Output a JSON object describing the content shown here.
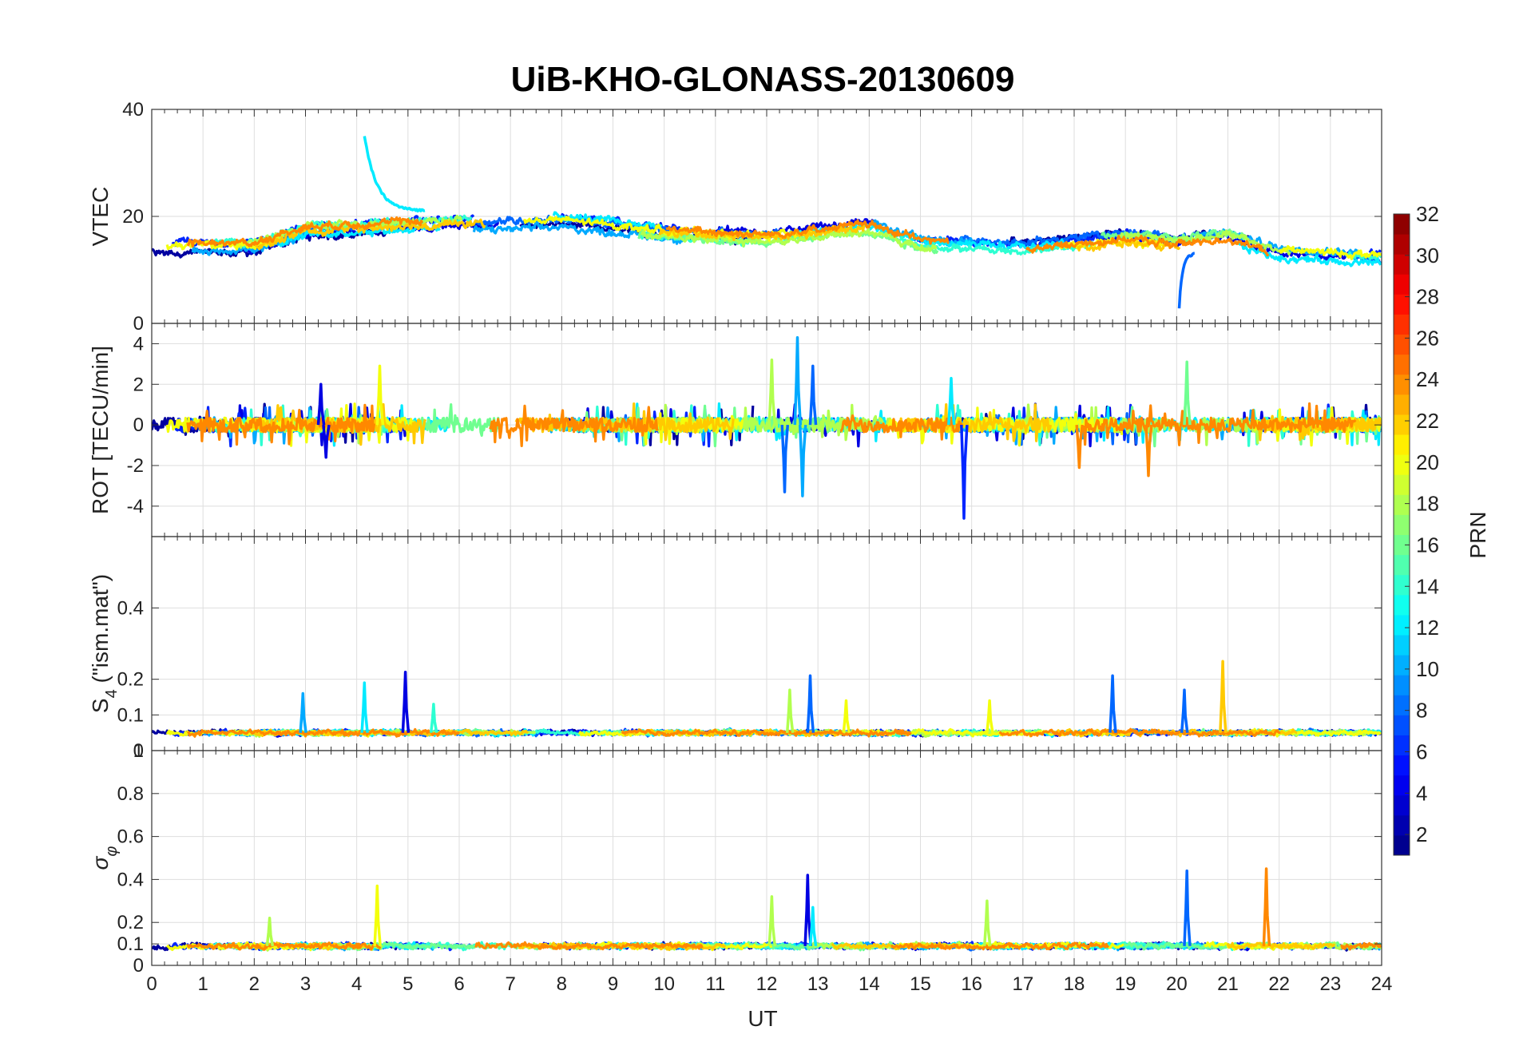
{
  "title": "UiB-KHO-GLONASS-20130609",
  "chart_data": {
    "type": "line",
    "title": "UiB-KHO-GLONASS-20130609",
    "x": {
      "label": "UT",
      "range": [
        0,
        24
      ],
      "ticks": [
        "0",
        "1",
        "2",
        "3",
        "4",
        "5",
        "6",
        "7",
        "8",
        "9",
        "10",
        "11",
        "12",
        "13",
        "14",
        "15",
        "16",
        "17",
        "18",
        "19",
        "20",
        "21",
        "22",
        "23",
        "24"
      ]
    },
    "panels": [
      {
        "id": "vtec",
        "ylabel": "VTEC",
        "ylim": [
          0,
          40
        ],
        "yticks": [
          0,
          20,
          40
        ],
        "ytick_labels": [
          "0",
          "20",
          "40"
        ],
        "base_level": 15,
        "noise": 1.2,
        "spikes": [
          {
            "t": 4.15,
            "value": 35,
            "prn": 12,
            "decay_to": 21,
            "duration": 1.2
          },
          {
            "t": 20.05,
            "value": 3,
            "prn": 8,
            "decay_to": 13,
            "duration": 0.3
          }
        ],
        "envelope": [
          [
            0,
            14
          ],
          [
            2,
            14
          ],
          [
            3,
            17
          ],
          [
            5,
            18
          ],
          [
            8,
            19
          ],
          [
            10,
            17
          ],
          [
            12,
            16
          ],
          [
            14,
            18
          ],
          [
            15,
            15
          ],
          [
            17,
            14
          ],
          [
            19,
            16
          ],
          [
            20,
            15
          ],
          [
            21,
            16
          ],
          [
            22,
            13
          ],
          [
            24,
            12
          ]
        ]
      },
      {
        "id": "rot",
        "ylabel": "ROT [TECU/min]",
        "ylim": [
          -5.5,
          5
        ],
        "yticks": [
          -4,
          -2,
          0,
          2,
          4
        ],
        "ytick_labels": [
          "-4",
          "-2",
          "0",
          "2",
          "4"
        ],
        "base_level": 0,
        "noise": 0.35,
        "spikes": [
          {
            "t": 12.1,
            "value": 3.2,
            "prn": 18
          },
          {
            "t": 12.35,
            "value": -3.3,
            "prn": 8
          },
          {
            "t": 12.6,
            "value": 4.3,
            "prn": 10
          },
          {
            "t": 12.7,
            "value": -3.5,
            "prn": 10
          },
          {
            "t": 12.9,
            "value": 2.9,
            "prn": 8
          },
          {
            "t": 4.45,
            "value": 2.9,
            "prn": 20
          },
          {
            "t": 15.85,
            "value": -4.6,
            "prn": 6
          },
          {
            "t": 15.6,
            "value": 2.3,
            "prn": 12
          },
          {
            "t": 20.2,
            "value": 3.1,
            "prn": 16
          },
          {
            "t": 19.45,
            "value": -2.5,
            "prn": 24
          },
          {
            "t": 18.1,
            "value": -2.1,
            "prn": 24
          },
          {
            "t": 3.3,
            "value": 2.0,
            "prn": 4
          },
          {
            "t": 3.4,
            "value": -1.6,
            "prn": 4
          }
        ]
      },
      {
        "id": "s4",
        "ylabel": "S4 (\"ism.mat\")",
        "ylim": [
          0,
          0.6
        ],
        "yticks": [
          0,
          0.1,
          0.2,
          0.4
        ],
        "ytick_labels": [
          "0",
          "0.1",
          "0.2",
          "0.4"
        ],
        "top_label": "1",
        "base_level": 0.05,
        "noise": 0.012,
        "spikes": [
          {
            "t": 4.95,
            "value": 0.22,
            "prn": 4
          },
          {
            "t": 4.15,
            "value": 0.19,
            "prn": 12
          },
          {
            "t": 2.95,
            "value": 0.16,
            "prn": 10
          },
          {
            "t": 12.85,
            "value": 0.21,
            "prn": 8
          },
          {
            "t": 12.45,
            "value": 0.17,
            "prn": 18
          },
          {
            "t": 18.75,
            "value": 0.21,
            "prn": 8
          },
          {
            "t": 20.9,
            "value": 0.25,
            "prn": 22
          },
          {
            "t": 20.15,
            "value": 0.17,
            "prn": 8
          },
          {
            "t": 5.5,
            "value": 0.13,
            "prn": 14
          },
          {
            "t": 13.55,
            "value": 0.14,
            "prn": 20
          },
          {
            "t": 16.35,
            "value": 0.14,
            "prn": 20
          }
        ]
      },
      {
        "id": "sigma_phi",
        "ylabel": "σφ",
        "ylim": [
          0,
          1
        ],
        "yticks": [
          0,
          0.1,
          0.2,
          0.4,
          0.6,
          0.8
        ],
        "ytick_labels": [
          "0",
          "0.1",
          "0.2",
          "0.4",
          "0.6",
          "0.8"
        ],
        "base_level": 0.09,
        "noise": 0.022,
        "spikes": [
          {
            "t": 4.4,
            "value": 0.37,
            "prn": 20
          },
          {
            "t": 12.8,
            "value": 0.42,
            "prn": 4
          },
          {
            "t": 12.1,
            "value": 0.32,
            "prn": 18
          },
          {
            "t": 20.2,
            "value": 0.44,
            "prn": 8
          },
          {
            "t": 21.75,
            "value": 0.45,
            "prn": 24
          },
          {
            "t": 2.3,
            "value": 0.22,
            "prn": 18
          },
          {
            "t": 16.3,
            "value": 0.3,
            "prn": 18
          },
          {
            "t": 12.9,
            "value": 0.27,
            "prn": 12
          }
        ]
      }
    ],
    "colorbar": {
      "label": "PRN",
      "range": [
        1,
        32
      ],
      "ticks": [
        "2",
        "4",
        "6",
        "8",
        "10",
        "12",
        "14",
        "16",
        "18",
        "20",
        "22",
        "24",
        "26",
        "28",
        "30",
        "32"
      ],
      "colormap": "jet"
    },
    "series": [
      {
        "prn": 2
      },
      {
        "prn": 4
      },
      {
        "prn": 6
      },
      {
        "prn": 8
      },
      {
        "prn": 10
      },
      {
        "prn": 12
      },
      {
        "prn": 14
      },
      {
        "prn": 16
      },
      {
        "prn": 18
      },
      {
        "prn": 20
      },
      {
        "prn": 22
      },
      {
        "prn": 24
      }
    ],
    "grid": true
  }
}
